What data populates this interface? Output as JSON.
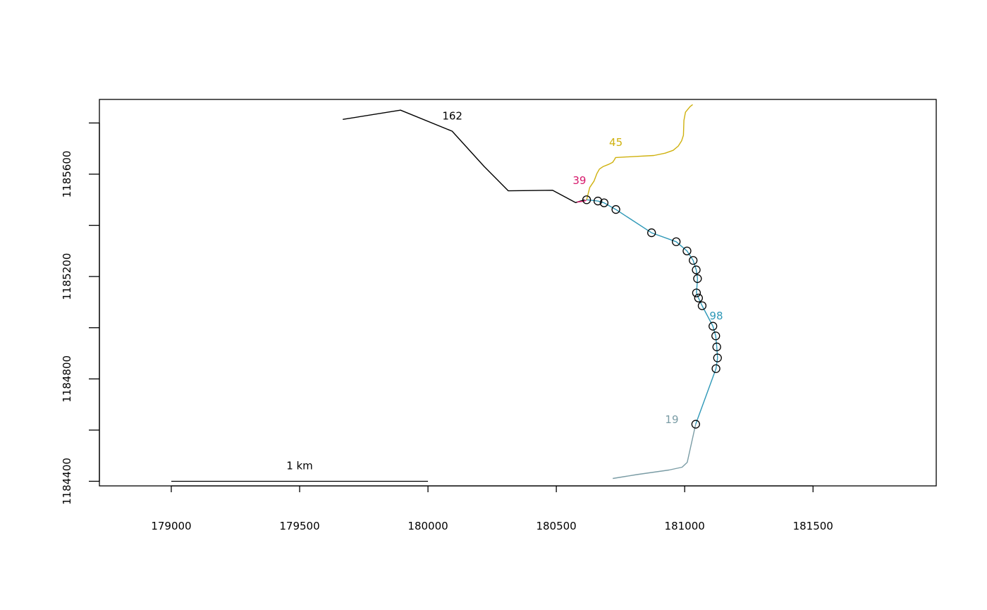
{
  "chart_data": {
    "type": "line",
    "title": "",
    "xlabel": "",
    "ylabel": "",
    "xlim": [
      178720,
      181980
    ],
    "ylim": [
      1184382,
      1185892
    ],
    "x_ticks": [
      179000,
      179500,
      180000,
      180500,
      181000,
      181500
    ],
    "x_tick_labels": [
      "179000",
      "179500",
      "180000",
      "180500",
      "181000",
      "181500"
    ],
    "y_ticks": [
      1184400,
      1184600,
      1184800,
      1185000,
      1185200,
      1185400,
      1185600,
      1185800
    ],
    "y_tick_labels": [
      "1184400",
      "",
      "1184800",
      "",
      "1185200",
      "",
      "1185600",
      ""
    ],
    "grid": false,
    "series": [
      {
        "name": "162",
        "color": "#000000",
        "label_pos": [
          180095,
          1185814
        ],
        "x": [
          179668,
          179893,
          180094,
          180219,
          180313,
          180485,
          180575,
          180610
        ],
        "y": [
          1185814,
          1185850,
          1185768,
          1185630,
          1185535,
          1185537,
          1185489,
          1185500
        ]
      },
      {
        "name": "39",
        "color": "#d6186b",
        "label_pos": [
          180590,
          1185561
        ],
        "x": [
          180581,
          180610,
          180618
        ],
        "y": [
          1185491,
          1185495,
          1185500
        ]
      },
      {
        "name": "45",
        "color": "#cfb10e",
        "label_pos": [
          180732,
          1185710
        ],
        "x": [
          180618,
          180630,
          180647,
          180658,
          180668,
          180683,
          180703,
          180719,
          180726,
          180731,
          180805,
          180880,
          180924,
          180955,
          180975,
          180988,
          180995,
          180997,
          181003,
          181021,
          181031
        ],
        "y": [
          1185500,
          1185548,
          1185573,
          1185602,
          1185620,
          1185630,
          1185638,
          1185646,
          1185656,
          1185665,
          1185669,
          1185673,
          1185682,
          1185693,
          1185710,
          1185730,
          1185752,
          1185810,
          1185842,
          1185864,
          1185872
        ]
      },
      {
        "name": "98",
        "color": "#2e98b7",
        "label_pos": [
          181123,
          1185032
        ],
        "x": [
          180618,
          180662,
          180686,
          180732,
          180871,
          180967,
          181009,
          181033,
          181045,
          181050,
          181046,
          181054,
          181068,
          181110,
          181121,
          181125,
          181128,
          181122,
          181043
        ],
        "y": [
          1185500,
          1185495,
          1185488,
          1185462,
          1185371,
          1185336,
          1185300,
          1185263,
          1185226,
          1185192,
          1185136,
          1185116,
          1185086,
          1185006,
          1184968,
          1184925,
          1184882,
          1184840,
          1184623
        ]
      },
      {
        "name": "19",
        "color": "#7a9ca5",
        "label_pos": [
          180950,
          1184627
        ],
        "x": [
          180720,
          180813,
          180939,
          180990,
          181010,
          181043
        ],
        "y": [
          1184411,
          1184426,
          1184444,
          1184455,
          1184474,
          1184623
        ]
      }
    ],
    "points": {
      "x": [
        180618,
        180662,
        180686,
        180732,
        180871,
        180967,
        181009,
        181033,
        181045,
        181050,
        181046,
        181054,
        181068,
        181110,
        181121,
        181125,
        181128,
        181122,
        181043
      ],
      "y": [
        1185500,
        1185495,
        1185488,
        1185462,
        1185371,
        1185336,
        1185300,
        1185263,
        1185226,
        1185192,
        1185136,
        1185116,
        1185086,
        1185006,
        1184968,
        1184925,
        1184882,
        1184840,
        1184623
      ]
    },
    "scale_bar": {
      "label": "1 km",
      "from_x": 179000,
      "to_x": 180000,
      "y": 1184400
    }
  }
}
